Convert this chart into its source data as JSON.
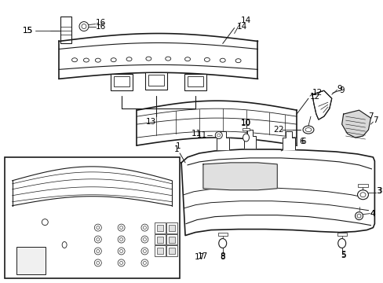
{
  "bg_color": "#ffffff",
  "line_color": "#1a1a1a",
  "label_color": "#000000",
  "label_fontsize": 7.5,
  "fig_width": 4.89,
  "fig_height": 3.6,
  "dpi": 100
}
